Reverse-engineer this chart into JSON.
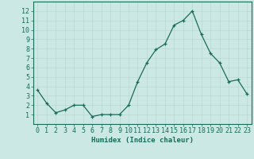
{
  "x": [
    0,
    1,
    2,
    3,
    4,
    5,
    6,
    7,
    8,
    9,
    10,
    11,
    12,
    13,
    14,
    15,
    16,
    17,
    18,
    19,
    20,
    21,
    22,
    23
  ],
  "y": [
    3.6,
    2.2,
    1.2,
    1.5,
    2.0,
    2.0,
    0.8,
    1.0,
    1.0,
    1.0,
    2.0,
    4.5,
    6.5,
    7.9,
    8.5,
    10.5,
    11.0,
    12.0,
    9.5,
    7.5,
    6.5,
    4.5,
    4.7,
    3.2
  ],
  "line_color": "#1a6b5a",
  "marker_color": "#1a6b5a",
  "bg_color": "#cce8e4",
  "grid_color": "#b8d8d4",
  "axis_color": "#1a6b5a",
  "tick_color": "#1a6b5a",
  "xlabel": "Humidex (Indice chaleur)",
  "ylim": [
    0,
    13
  ],
  "xlim": [
    -0.5,
    23.5
  ],
  "yticks": [
    1,
    2,
    3,
    4,
    5,
    6,
    7,
    8,
    9,
    10,
    11,
    12
  ],
  "xticks": [
    0,
    1,
    2,
    3,
    4,
    5,
    6,
    7,
    8,
    9,
    10,
    11,
    12,
    13,
    14,
    15,
    16,
    17,
    18,
    19,
    20,
    21,
    22,
    23
  ],
  "xlabel_fontsize": 6.5,
  "tick_fontsize": 6.0,
  "marker_size": 3.0,
  "line_width": 0.9
}
